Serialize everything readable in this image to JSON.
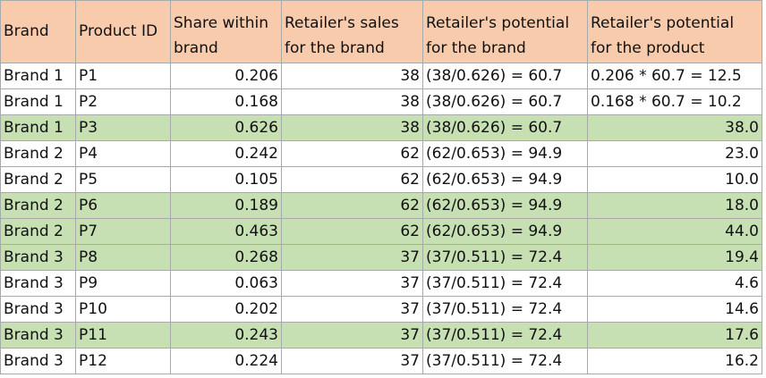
{
  "table": {
    "headers": [
      [
        "Brand"
      ],
      [
        "Product ID"
      ],
      [
        "Share within",
        "brand"
      ],
      [
        "Retailer's sales",
        "for the brand"
      ],
      [
        "Retailer's potential",
        "for the brand"
      ],
      [
        "Retailer's potential",
        "for the product"
      ]
    ],
    "rows": [
      {
        "brand": "Brand 1",
        "product": "P1",
        "share": "0.206",
        "sales": "38",
        "brand_potential": "(38/0.626) = 60.7",
        "product_potential": "0.206 * 60.7 = 12.5",
        "highlight": false
      },
      {
        "brand": "Brand 1",
        "product": "P2",
        "share": "0.168",
        "sales": "38",
        "brand_potential": "(38/0.626) = 60.7",
        "product_potential": "0.168 * 60.7 = 10.2",
        "highlight": false
      },
      {
        "brand": "Brand 1",
        "product": "P3",
        "share": "0.626",
        "sales": "38",
        "brand_potential": "(38/0.626) = 60.7",
        "product_potential": "38.0",
        "highlight": true
      },
      {
        "brand": "Brand 2",
        "product": "P4",
        "share": "0.242",
        "sales": "62",
        "brand_potential": "(62/0.653) = 94.9",
        "product_potential": "23.0",
        "highlight": false
      },
      {
        "brand": "Brand 2",
        "product": "P5",
        "share": "0.105",
        "sales": "62",
        "brand_potential": "(62/0.653) = 94.9",
        "product_potential": "10.0",
        "highlight": false
      },
      {
        "brand": "Brand 2",
        "product": "P6",
        "share": "0.189",
        "sales": "62",
        "brand_potential": "(62/0.653) = 94.9",
        "product_potential": "18.0",
        "highlight": true
      },
      {
        "brand": "Brand 2",
        "product": "P7",
        "share": "0.463",
        "sales": "62",
        "brand_potential": "(62/0.653) = 94.9",
        "product_potential": "44.0",
        "highlight": true
      },
      {
        "brand": "Brand 3",
        "product": "P8",
        "share": "0.268",
        "sales": "37",
        "brand_potential": "(37/0.511) = 72.4",
        "product_potential": "19.4",
        "highlight": true
      },
      {
        "brand": "Brand 3",
        "product": "P9",
        "share": "0.063",
        "sales": "37",
        "brand_potential": "(37/0.511) = 72.4",
        "product_potential": "4.6",
        "highlight": false
      },
      {
        "brand": "Brand 3",
        "product": "P10",
        "share": "0.202",
        "sales": "37",
        "brand_potential": "(37/0.511) = 72.4",
        "product_potential": "14.6",
        "highlight": false
      },
      {
        "brand": "Brand 3",
        "product": "P11",
        "share": "0.243",
        "sales": "37",
        "brand_potential": "(37/0.511) = 72.4",
        "product_potential": "17.6",
        "highlight": true
      },
      {
        "brand": "Brand 3",
        "product": "P12",
        "share": "0.224",
        "sales": "37",
        "brand_potential": "(37/0.511) = 72.4",
        "product_potential": "16.2",
        "highlight": false
      }
    ]
  },
  "colors": {
    "header_fill": "#f8cbad",
    "highlight_fill": "#c6e0b4",
    "gridline": "#a9a9a9"
  }
}
